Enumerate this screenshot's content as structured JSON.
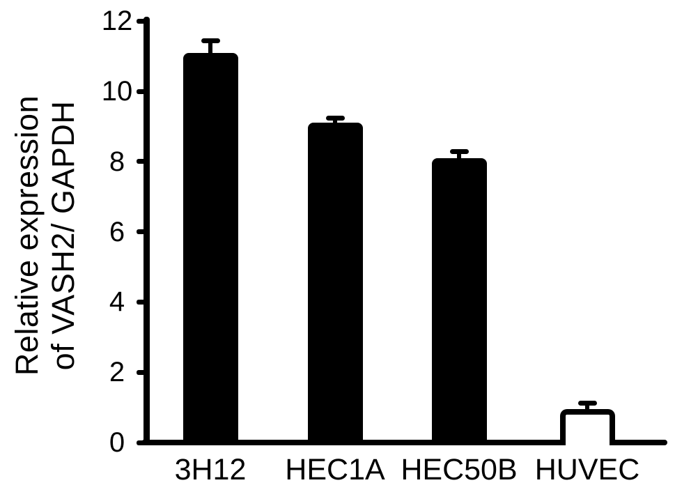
{
  "figure": {
    "background": "#ffffff",
    "ink_color": "#000000"
  },
  "chart_data": {
    "type": "bar",
    "title": "",
    "ylabel_line1": "Relative expression",
    "ylabel_line2": "of VASH2/ GAPDH",
    "xlabel": "",
    "categories": [
      "3H12",
      "HEC1A",
      "HEC50B",
      "HUVEC"
    ],
    "values": [
      11.1,
      9.1,
      8.1,
      0.95
    ],
    "errors": [
      0.4,
      0.2,
      0.25,
      0.25
    ],
    "error_bars": "upper-only",
    "bar_fills": [
      "#000000",
      "#000000",
      "#000000",
      "#ffffff"
    ],
    "bar_border_color": "#000000",
    "ylim": [
      0,
      12
    ],
    "yticks": [
      0,
      2,
      4,
      6,
      8,
      10,
      12
    ],
    "grid": false,
    "legend": "none"
  }
}
